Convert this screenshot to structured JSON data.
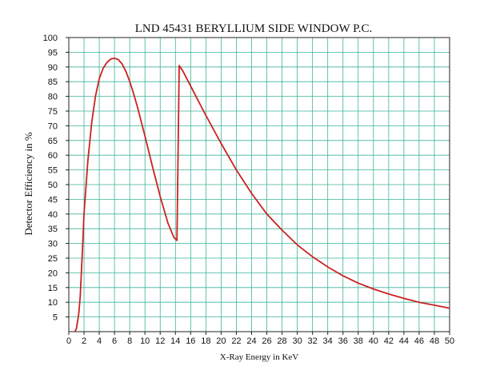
{
  "chart_data": {
    "type": "line",
    "title": "LND 45431 BERYLLIUM SIDE WINDOW P.C.",
    "xlabel": "X-Ray Energy in KeV",
    "ylabel": "Detector Efficiency in %",
    "xlim": [
      0,
      50
    ],
    "ylim": [
      0,
      100
    ],
    "xticks": [
      0,
      2,
      4,
      6,
      8,
      10,
      12,
      14,
      16,
      18,
      20,
      22,
      24,
      26,
      28,
      30,
      32,
      34,
      36,
      38,
      40,
      42,
      44,
      46,
      48,
      50
    ],
    "yticks": [
      5,
      10,
      15,
      20,
      25,
      30,
      35,
      40,
      45,
      50,
      55,
      60,
      65,
      70,
      75,
      80,
      85,
      90,
      95,
      100
    ],
    "grid": true,
    "series": [
      {
        "color": "#cc2222",
        "x": [
          0.8,
          1.0,
          1.3,
          1.5,
          1.8,
          2.0,
          2.5,
          3.0,
          3.5,
          4.0,
          4.5,
          5.0,
          5.5,
          6.0,
          6.5,
          7.0,
          7.5,
          8.0,
          8.5,
          9.0,
          10.0,
          11.0,
          12.0,
          13.0,
          13.8,
          14.2,
          14.5,
          15.0,
          16.0,
          17.0,
          18.0,
          20.0,
          22.0,
          24.0,
          26.0,
          28.0,
          30.0,
          32.0,
          34.0,
          36.0,
          38.0,
          40.0,
          42.0,
          44.0,
          46.0,
          48.0,
          50.0
        ],
        "y": [
          0,
          1,
          6,
          12,
          28,
          40,
          58,
          71,
          80,
          86,
          89.5,
          91.5,
          92.7,
          93,
          92.5,
          91,
          88.5,
          85,
          81,
          76.5,
          66.5,
          56,
          46,
          37,
          32,
          31,
          90.5,
          88.5,
          83.5,
          78.5,
          73.5,
          64,
          55,
          47,
          40,
          34.5,
          29.5,
          25.5,
          22,
          19,
          16.5,
          14.5,
          12.8,
          11.3,
          10,
          9,
          8
        ]
      }
    ]
  }
}
